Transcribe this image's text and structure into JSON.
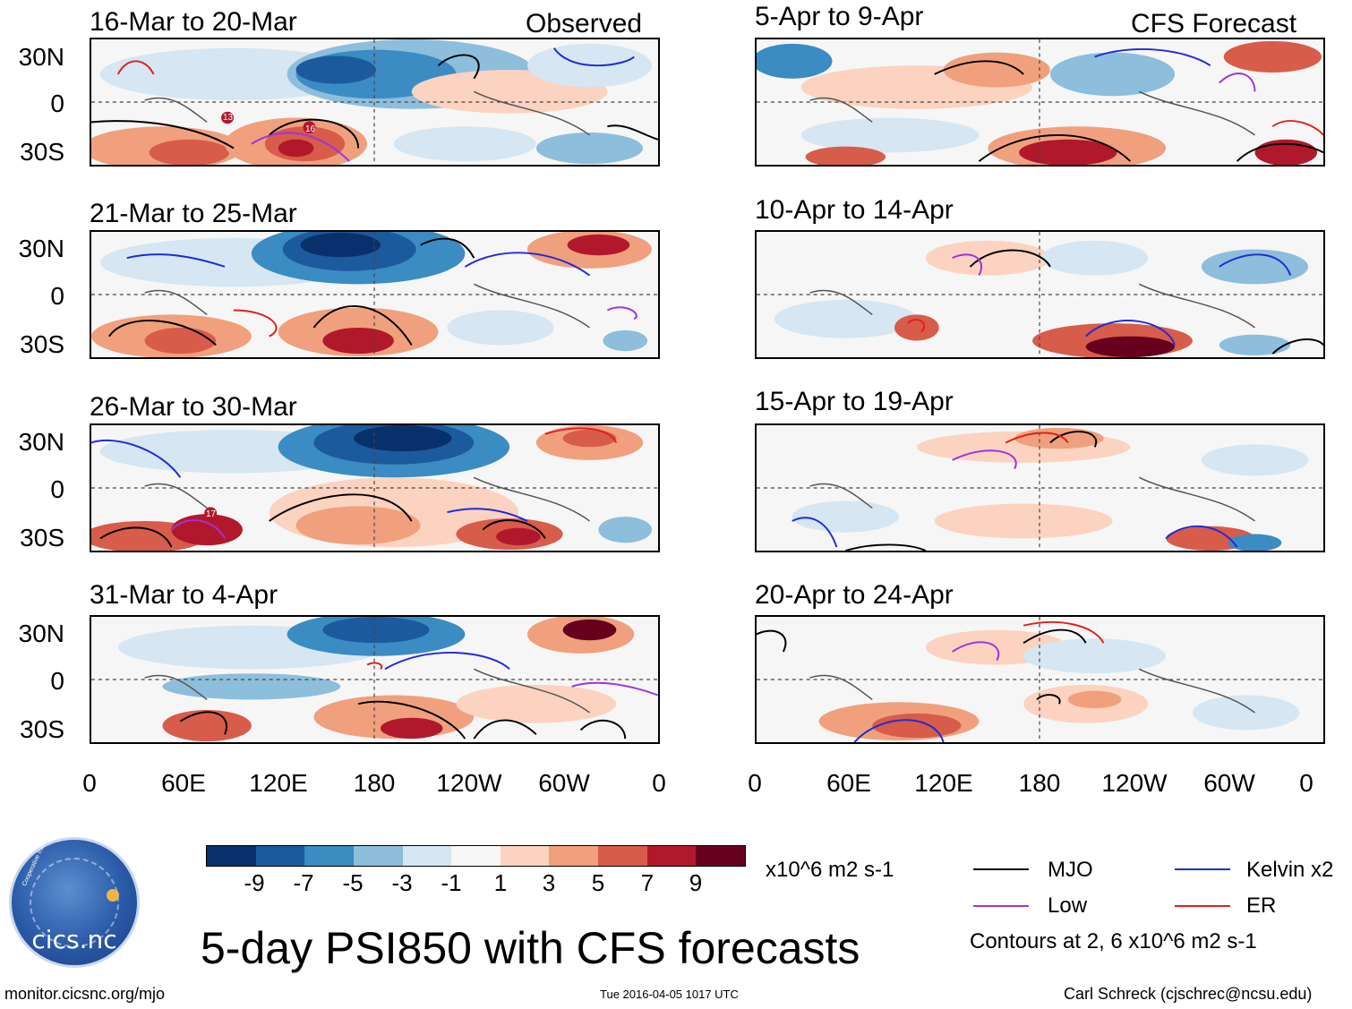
{
  "left_column": {
    "header_right": "Observed",
    "panels": [
      {
        "title": "16-Mar to 20-Mar"
      },
      {
        "title": "21-Mar to 25-Mar"
      },
      {
        "title": "26-Mar to 30-Mar"
      },
      {
        "title": "31-Mar to 4-Apr"
      }
    ]
  },
  "right_column": {
    "header_right": "CFS Forecast",
    "panels": [
      {
        "title": "5-Apr to 9-Apr"
      },
      {
        "title": "10-Apr to 14-Apr"
      },
      {
        "title": "15-Apr to 19-Apr"
      },
      {
        "title": "20-Apr to 24-Apr"
      }
    ]
  },
  "y_ticks": [
    "30N",
    "0",
    "30S"
  ],
  "x_ticks": [
    "0",
    "60E",
    "120E",
    "180",
    "120W",
    "60W",
    "0"
  ],
  "storm_markers": [
    {
      "panel": "16-Mar to 20-Mar",
      "label": "13"
    },
    {
      "panel": "16-Mar to 20-Mar",
      "label": "16"
    },
    {
      "panel": "26-Mar to 30-Mar",
      "label": "17"
    }
  ],
  "colorbar": {
    "labels": [
      "-9",
      "-7",
      "-5",
      "-3",
      "-1",
      "1",
      "3",
      "5",
      "7",
      "9"
    ],
    "units": "x10^6 m2 s-1",
    "colors": [
      "#08306b",
      "#1c5a9e",
      "#3a8cc2",
      "#8dbedc",
      "#d6e6f2",
      "#f7f7f7",
      "#fbd3c0",
      "#f0a07d",
      "#d85c4a",
      "#b2182b",
      "#67001f"
    ]
  },
  "legend": {
    "items": [
      {
        "label": "MJO",
        "color": "#000000"
      },
      {
        "label": "Kelvin x2",
        "color": "#1f2bd8"
      },
      {
        "label": "Low",
        "color": "#a033e0"
      },
      {
        "label": "ER",
        "color": "#e0201a"
      }
    ],
    "note": "Contours at 2, 6 x10^6 m2 s-1"
  },
  "main_title": "5-day PSI850 with CFS forecasts",
  "footer": {
    "left": "monitor.cicsnc.org/mjo",
    "center": "Tue 2016-04-05 1017 UTC",
    "right": "Carl Schreck (cjschrec@ncsu.edu)"
  },
  "logo": {
    "text": "cics.nc",
    "ring_text": "Cooperative Institute for Climate and Satellites"
  }
}
